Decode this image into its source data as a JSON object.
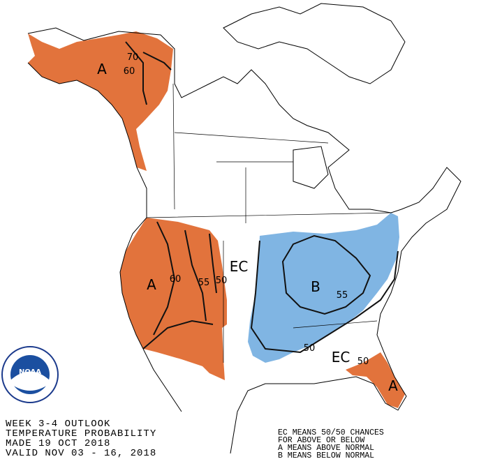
{
  "map_labels": [
    "A",
    "70",
    "60",
    "A",
    "60",
    "55",
    "50",
    "EC",
    "B",
    "55",
    "50",
    "EC",
    "50",
    "A"
  ],
  "logo": {
    "text": "NOAA"
  },
  "header": {
    "lines": [
      "WEEK 3-4 OUTLOOK",
      "TEMPERATURE PROBABILITY",
      "MADE  19 OCT 2018",
      "VALID  NOV 03 - 16, 2018"
    ]
  },
  "legend": {
    "lines": [
      "EC MEANS 50/50 CHANCES",
      "FOR ABOVE OR BELOW",
      "A MEANS ABOVE NORMAL",
      "B MEANS BELOW NORMAL"
    ]
  }
}
